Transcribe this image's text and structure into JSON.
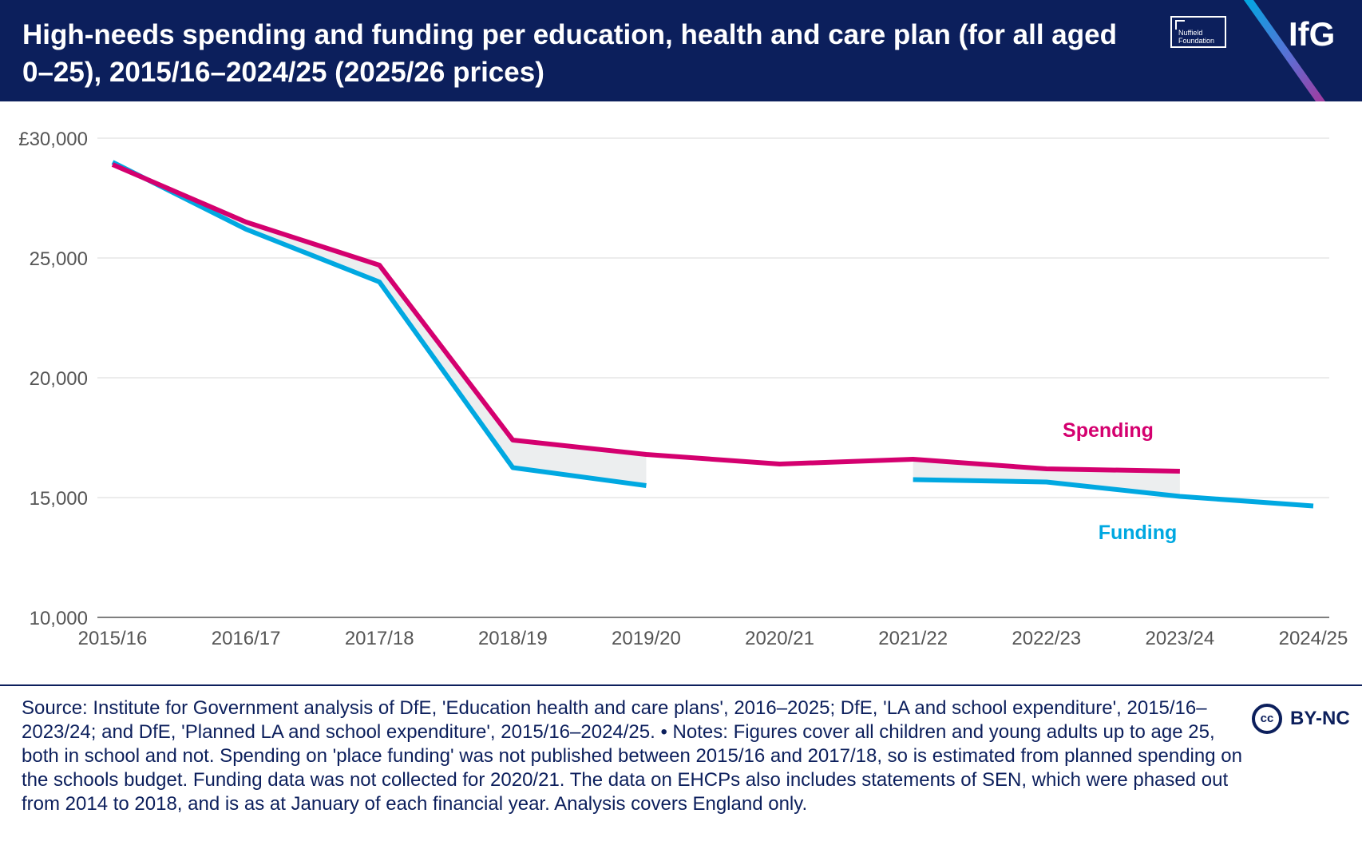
{
  "header": {
    "title": "High-needs spending and funding per education, health and care plan (for all aged 0–25), 2015/16–2024/25 (2025/26 prices)",
    "partner_logo_line1": "Nuffield",
    "partner_logo_line2": "Foundation",
    "brand_logo": "IfG"
  },
  "chart_data": {
    "type": "line",
    "title": "High-needs spending and funding per education, health and care plan (for all aged 0–25), 2015/16–2024/25 (2025/26 prices)",
    "categories": [
      "2015/16",
      "2016/17",
      "2017/18",
      "2018/19",
      "2019/20",
      "2020/21",
      "2021/22",
      "2022/23",
      "2023/24",
      "2024/25"
    ],
    "y_tick_labels": [
      "£30,000",
      "25,000",
      "20,000",
      "15,000",
      "10,000"
    ],
    "y_ticks": [
      30000,
      25000,
      20000,
      15000,
      10000
    ],
    "ylim": [
      10000,
      30000
    ],
    "series": [
      {
        "name": "Spending",
        "color": "#d4006f",
        "values": [
          28900,
          26500,
          24700,
          17400,
          16800,
          16400,
          16600,
          16200,
          16100,
          null
        ]
      },
      {
        "name": "Funding",
        "color": "#00a8e1",
        "values": [
          29000,
          26200,
          24000,
          16250,
          15500,
          null,
          15750,
          15650,
          15050,
          14650
        ]
      }
    ],
    "gap_shading_color": "#eceeef",
    "gridlines": true,
    "legend": "direct labels near series ends"
  },
  "footer": {
    "source_text": "Source: Institute for Government analysis of DfE, 'Education health and care plans', 2016–2025; DfE, 'LA and school expenditure', 2015/16–2023/24; and DfE, 'Planned LA and school expenditure', 2015/16–2024/25. • Notes: Figures cover all children and young adults up to age 25, both in school and not. Spending on 'place funding' was not published between 2015/16 and 2017/18, so is estimated from planned spending on the schools budget. Funding data was not collected for 2020/21. The data on EHCPs also includes statements of SEN, which were phased out from 2014 to 2018, and is as at January of each financial year. Analysis covers England only.",
    "licence_icon_text": "cc",
    "licence_label": "BY-NC"
  }
}
